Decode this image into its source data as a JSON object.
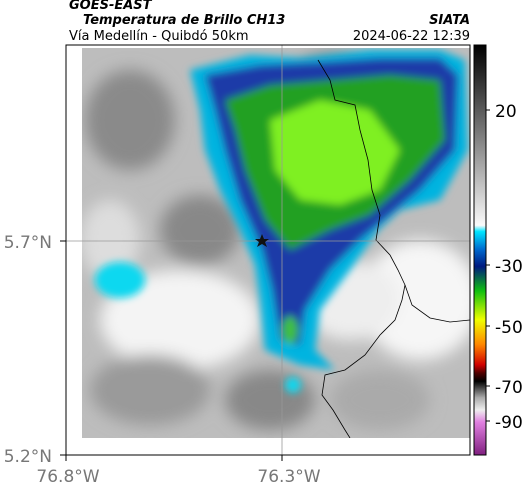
{
  "header": {
    "satellite": "GOES-EAST",
    "product": "Temperatura de Brillo CH13",
    "location": "Vía Medellín - Quibdó 50km",
    "source": "SIATA",
    "datetime": "2024-06-22 12:39"
  },
  "map": {
    "lat_labels": [
      "5.7°N",
      "5.2°N"
    ],
    "lon_labels": [
      "76.8°W",
      "76.3°W"
    ]
  },
  "colorbar": {
    "ticks": [
      20,
      -30,
      -50,
      -70,
      -90
    ]
  }
}
